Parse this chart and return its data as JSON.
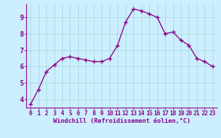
{
  "x": [
    0,
    1,
    2,
    3,
    4,
    5,
    6,
    7,
    8,
    9,
    10,
    11,
    12,
    13,
    14,
    15,
    16,
    17,
    18,
    19,
    20,
    21,
    22,
    23
  ],
  "y": [
    3.7,
    4.6,
    5.7,
    6.1,
    6.5,
    6.6,
    6.5,
    6.4,
    6.3,
    6.3,
    6.5,
    7.3,
    8.7,
    9.5,
    9.4,
    9.2,
    9.0,
    8.0,
    8.1,
    7.6,
    7.3,
    6.5,
    6.3,
    6.0
  ],
  "line_color": "#880088",
  "marker": "+",
  "marker_size": 4,
  "line_width": 1.0,
  "bg_color": "#cceeff",
  "grid_color": "#aadddd",
  "xlabel": "Windchill (Refroidissement éolien,°C)",
  "xlabel_color": "#880088",
  "tick_color": "#880088",
  "ylim": [
    3.5,
    9.8
  ],
  "xlim": [
    -0.5,
    23.5
  ],
  "yticks": [
    4,
    5,
    6,
    7,
    8,
    9
  ],
  "xticks": [
    0,
    1,
    2,
    3,
    4,
    5,
    6,
    7,
    8,
    9,
    10,
    11,
    12,
    13,
    14,
    15,
    16,
    17,
    18,
    19,
    20,
    21,
    22,
    23
  ],
  "spine_color": "#880088",
  "label_fontsize": 6.5,
  "tick_fontsize": 6,
  "y_tick_fontsize": 7
}
